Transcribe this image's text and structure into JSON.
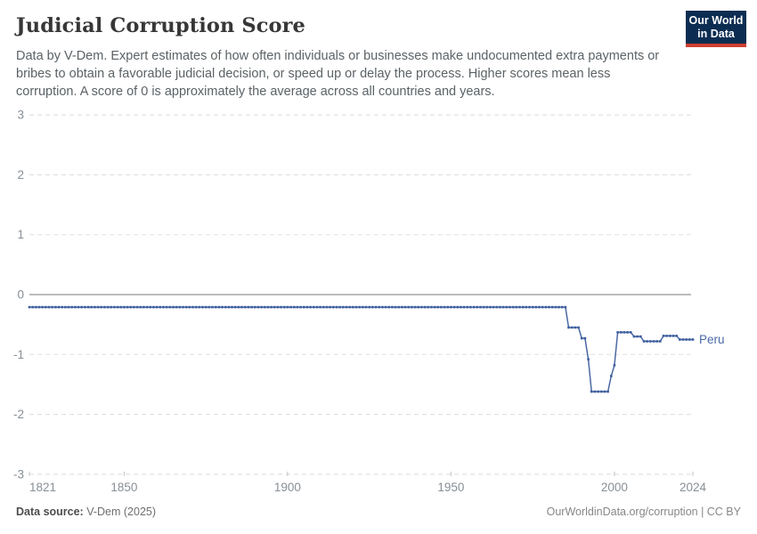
{
  "header": {
    "title": "Judicial Corruption Score",
    "subtitle": "Data by V-Dem. Expert estimates of how often individuals or businesses make undocumented extra payments or bribes to obtain a favorable judicial decision, or speed up or delay the process. Higher scores mean less corruption. A score of 0 is approximately the average across all countries and years.",
    "logo": {
      "line1": "Our World",
      "line2": "in Data",
      "bg_color": "#0c2d51",
      "accent_color": "#cf3e32"
    }
  },
  "chart_data": {
    "type": "line",
    "title": "Judicial Corruption Score",
    "entity_label": "Peru",
    "xlabel": "",
    "ylabel": "",
    "xlim": [
      1821,
      2024
    ],
    "ylim": [
      -3,
      3
    ],
    "x_ticks": [
      1821,
      1850,
      1900,
      1950,
      2000,
      2024
    ],
    "y_ticks": [
      3,
      2,
      1,
      0,
      -1,
      -2,
      -3
    ],
    "grid": "horizontal-dashed",
    "zero_line": true,
    "legend_position": "end-of-line",
    "series": [
      {
        "name": "Peru",
        "color": "#4a69a5",
        "marker_color": "#3e5e9e",
        "marker": "square",
        "segments": [
          {
            "start_year": 1821,
            "end_year": 1985,
            "value": -0.21
          },
          {
            "start_year": 1986,
            "end_year": 1989,
            "value": -0.55
          },
          {
            "start_year": 1990,
            "end_year": 1991,
            "value": -0.73
          },
          {
            "start_year": 1992,
            "end_year": 1992,
            "value": -1.08
          },
          {
            "start_year": 1993,
            "end_year": 1998,
            "value": -1.62
          },
          {
            "start_year": 1999,
            "end_year": 1999,
            "value": -1.36
          },
          {
            "start_year": 2000,
            "end_year": 2000,
            "value": -1.18
          },
          {
            "start_year": 2001,
            "end_year": 2005,
            "value": -0.63
          },
          {
            "start_year": 2006,
            "end_year": 2008,
            "value": -0.7
          },
          {
            "start_year": 2009,
            "end_year": 2014,
            "value": -0.78
          },
          {
            "start_year": 2015,
            "end_year": 2019,
            "value": -0.69
          },
          {
            "start_year": 2020,
            "end_year": 2024,
            "value": -0.75
          }
        ]
      }
    ],
    "colors": {
      "gridline": "#e2e2e2",
      "zero_line": "#a5a5a5",
      "tick_label": "#878f96",
      "entity_label": "#4a69a5"
    }
  },
  "footer": {
    "source_label": "Data source:",
    "source_value": " V-Dem (2025)",
    "right_text": "OurWorldinData.org/corruption | CC BY"
  }
}
